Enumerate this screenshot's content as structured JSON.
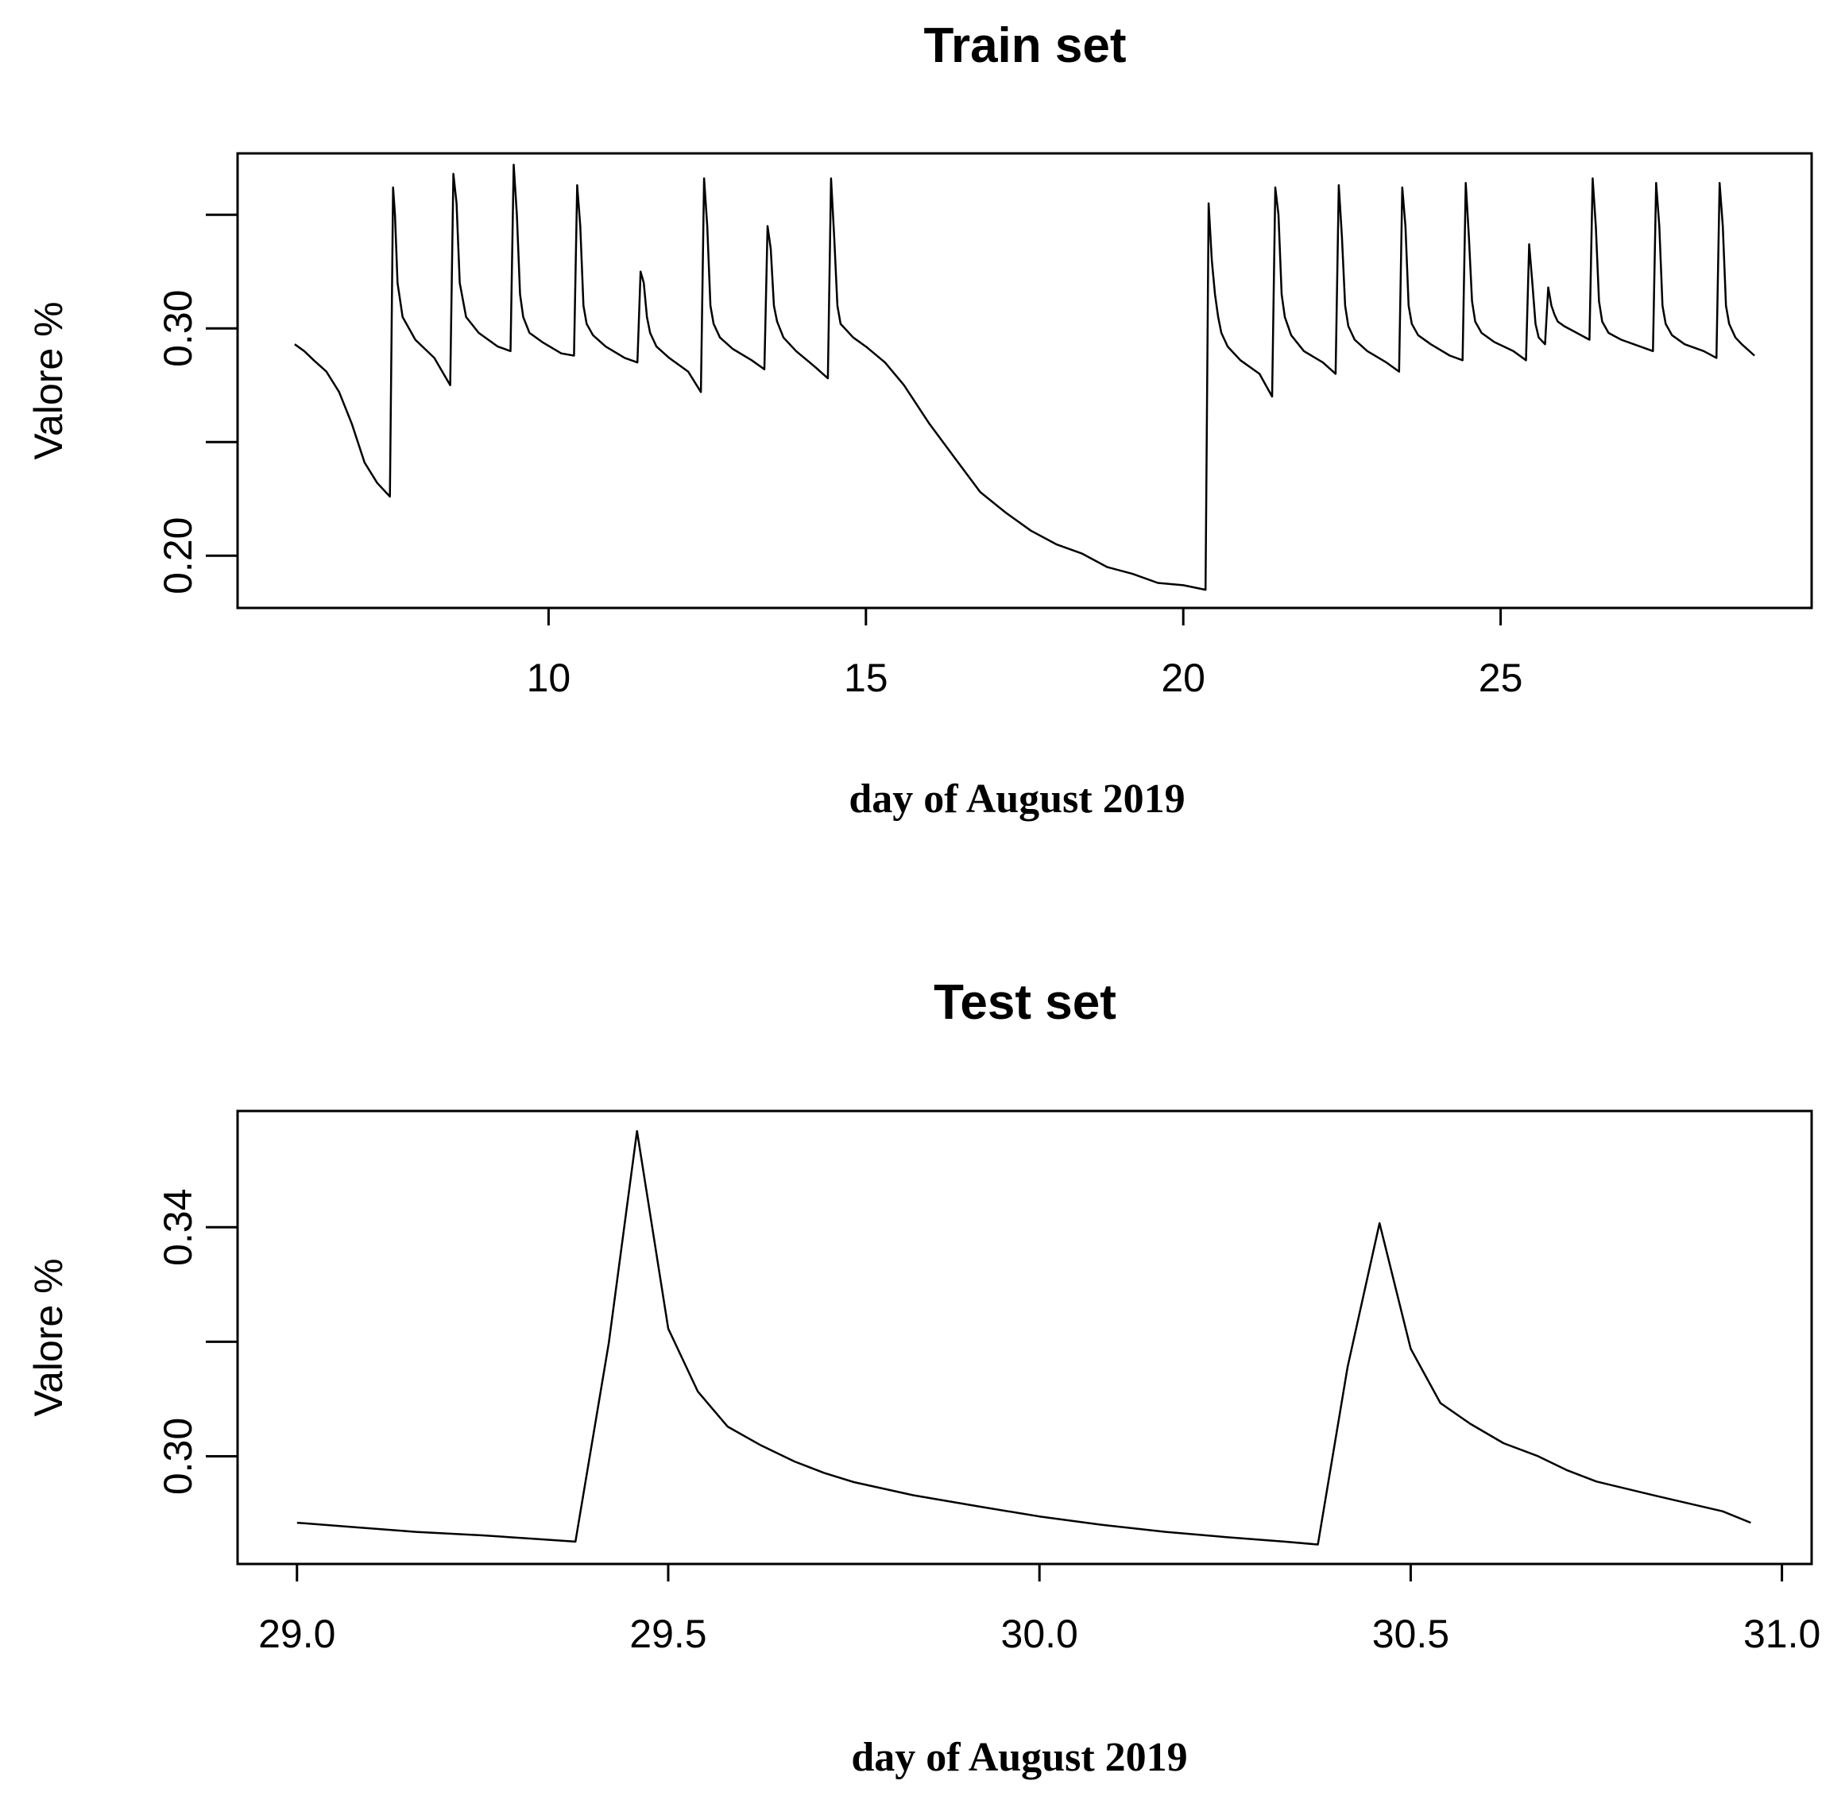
{
  "chart_data": [
    {
      "type": "line",
      "title": "Train set",
      "xlabel": "day of August 2019",
      "ylabel": "Valore %",
      "xlim": [
        5.1,
        29.9
      ],
      "ylim": [
        0.177,
        0.377
      ],
      "x_ticks": [
        10,
        15,
        20,
        25
      ],
      "x_tick_labels": [
        "10",
        "15",
        "20",
        "25"
      ],
      "y_ticks": [
        0.2,
        0.25,
        0.3,
        0.35
      ],
      "y_tick_labels": [
        "0.20",
        "",
        "0.30",
        ""
      ],
      "grid": false,
      "legend": "none",
      "series": [
        {
          "x": [
            6.0,
            6.15,
            6.3,
            6.5,
            6.7,
            6.9,
            7.1,
            7.3,
            7.5,
            7.55,
            7.58,
            7.62,
            7.7,
            7.9,
            8.2,
            8.45,
            8.5,
            8.55,
            8.6,
            8.7,
            8.9,
            9.2,
            9.4,
            9.45,
            9.5,
            9.55,
            9.6,
            9.7,
            9.9,
            10.2,
            10.4,
            10.45,
            10.5,
            10.55,
            10.6,
            10.7,
            10.9,
            11.2,
            11.4,
            11.45,
            11.5,
            11.55,
            11.6,
            11.7,
            11.9,
            12.2,
            12.4,
            12.45,
            12.5,
            12.55,
            12.6,
            12.7,
            12.9,
            13.2,
            13.4,
            13.45,
            13.5,
            13.55,
            13.6,
            13.7,
            13.9,
            14.2,
            14.4,
            14.45,
            14.5,
            14.55,
            14.6,
            14.8,
            15.0,
            15.3,
            15.6,
            16.0,
            16.4,
            16.8,
            17.2,
            17.6,
            18.0,
            18.4,
            18.8,
            19.2,
            19.6,
            20.0,
            20.35,
            20.4,
            20.45,
            20.5,
            20.55,
            20.6,
            20.7,
            20.9,
            21.2,
            21.4,
            21.45,
            21.5,
            21.55,
            21.6,
            21.7,
            21.9,
            22.2,
            22.4,
            22.45,
            22.5,
            22.55,
            22.6,
            22.7,
            22.9,
            23.2,
            23.4,
            23.45,
            23.5,
            23.55,
            23.6,
            23.7,
            23.9,
            24.2,
            24.4,
            24.45,
            24.5,
            24.55,
            24.6,
            24.7,
            24.9,
            25.2,
            25.4,
            25.45,
            25.5,
            25.55,
            25.6,
            25.7,
            25.75,
            25.8,
            25.85,
            25.9,
            26.0,
            26.2,
            26.4,
            26.45,
            26.5,
            26.55,
            26.6,
            26.7,
            26.9,
            27.2,
            27.4,
            27.45,
            27.5,
            27.55,
            27.6,
            27.7,
            27.9,
            28.2,
            28.4,
            28.45,
            28.5,
            28.55,
            28.6,
            28.7,
            28.8,
            29.0
          ],
          "y": [
            0.293,
            0.29,
            0.286,
            0.281,
            0.272,
            0.258,
            0.241,
            0.232,
            0.226,
            0.362,
            0.35,
            0.32,
            0.305,
            0.295,
            0.287,
            0.275,
            0.368,
            0.355,
            0.32,
            0.305,
            0.298,
            0.292,
            0.29,
            0.372,
            0.35,
            0.315,
            0.305,
            0.298,
            0.294,
            0.289,
            0.288,
            0.363,
            0.345,
            0.31,
            0.302,
            0.297,
            0.292,
            0.287,
            0.285,
            0.325,
            0.32,
            0.305,
            0.298,
            0.292,
            0.287,
            0.281,
            0.272,
            0.366,
            0.345,
            0.31,
            0.302,
            0.296,
            0.291,
            0.286,
            0.282,
            0.345,
            0.335,
            0.31,
            0.303,
            0.296,
            0.29,
            0.283,
            0.278,
            0.366,
            0.34,
            0.31,
            0.302,
            0.296,
            0.292,
            0.285,
            0.275,
            0.258,
            0.243,
            0.228,
            0.219,
            0.211,
            0.205,
            0.201,
            0.195,
            0.192,
            0.188,
            0.187,
            0.185,
            0.355,
            0.33,
            0.315,
            0.305,
            0.298,
            0.292,
            0.286,
            0.28,
            0.27,
            0.362,
            0.35,
            0.315,
            0.305,
            0.297,
            0.29,
            0.285,
            0.28,
            0.363,
            0.34,
            0.31,
            0.301,
            0.295,
            0.29,
            0.285,
            0.281,
            0.362,
            0.345,
            0.31,
            0.302,
            0.297,
            0.293,
            0.288,
            0.286,
            0.364,
            0.34,
            0.312,
            0.303,
            0.298,
            0.294,
            0.29,
            0.286,
            0.337,
            0.32,
            0.302,
            0.296,
            0.293,
            0.318,
            0.31,
            0.306,
            0.303,
            0.301,
            0.298,
            0.295,
            0.366,
            0.345,
            0.312,
            0.303,
            0.298,
            0.295,
            0.292,
            0.29,
            0.364,
            0.345,
            0.31,
            0.302,
            0.297,
            0.293,
            0.29,
            0.287,
            0.364,
            0.345,
            0.31,
            0.302,
            0.296,
            0.293,
            0.288
          ]
        }
      ]
    },
    {
      "type": "line",
      "title": "Test set",
      "xlabel": "day of August 2019",
      "ylabel": "Valore %",
      "xlim": [
        28.92,
        31.04
      ],
      "ylim": [
        0.2812,
        0.3603
      ],
      "x_ticks": [
        29.0,
        29.5,
        30.0,
        30.5,
        31.0
      ],
      "x_tick_labels": [
        "29.0",
        "29.5",
        "30.0",
        "30.5",
        "31.0"
      ],
      "y_ticks": [
        0.3,
        0.32,
        0.34
      ],
      "y_tick_labels": [
        "0.30",
        "",
        "0.34"
      ],
      "grid": false,
      "legend": "none",
      "series": [
        {
          "x": [
            29.0,
            29.08,
            29.16,
            29.25,
            29.33,
            29.375,
            29.42,
            29.458,
            29.5,
            29.54,
            29.58,
            29.625,
            29.67,
            29.71,
            29.75,
            29.83,
            29.92,
            30.0,
            30.08,
            30.17,
            30.25,
            30.33,
            30.375,
            30.415,
            30.458,
            30.5,
            30.54,
            30.58,
            30.625,
            30.67,
            30.71,
            30.75,
            30.83,
            30.92,
            30.958
          ],
          "y": [
            0.2884,
            0.2876,
            0.2868,
            0.2862,
            0.2855,
            0.2851,
            0.3198,
            0.3568,
            0.3223,
            0.3113,
            0.3052,
            0.3019,
            0.2991,
            0.2971,
            0.2955,
            0.2932,
            0.2912,
            0.2895,
            0.2881,
            0.2868,
            0.2859,
            0.2851,
            0.2846,
            0.3156,
            0.3407,
            0.3188,
            0.3093,
            0.3057,
            0.3023,
            0.3001,
            0.2976,
            0.2956,
            0.2931,
            0.2904,
            0.2884
          ]
        }
      ]
    }
  ]
}
